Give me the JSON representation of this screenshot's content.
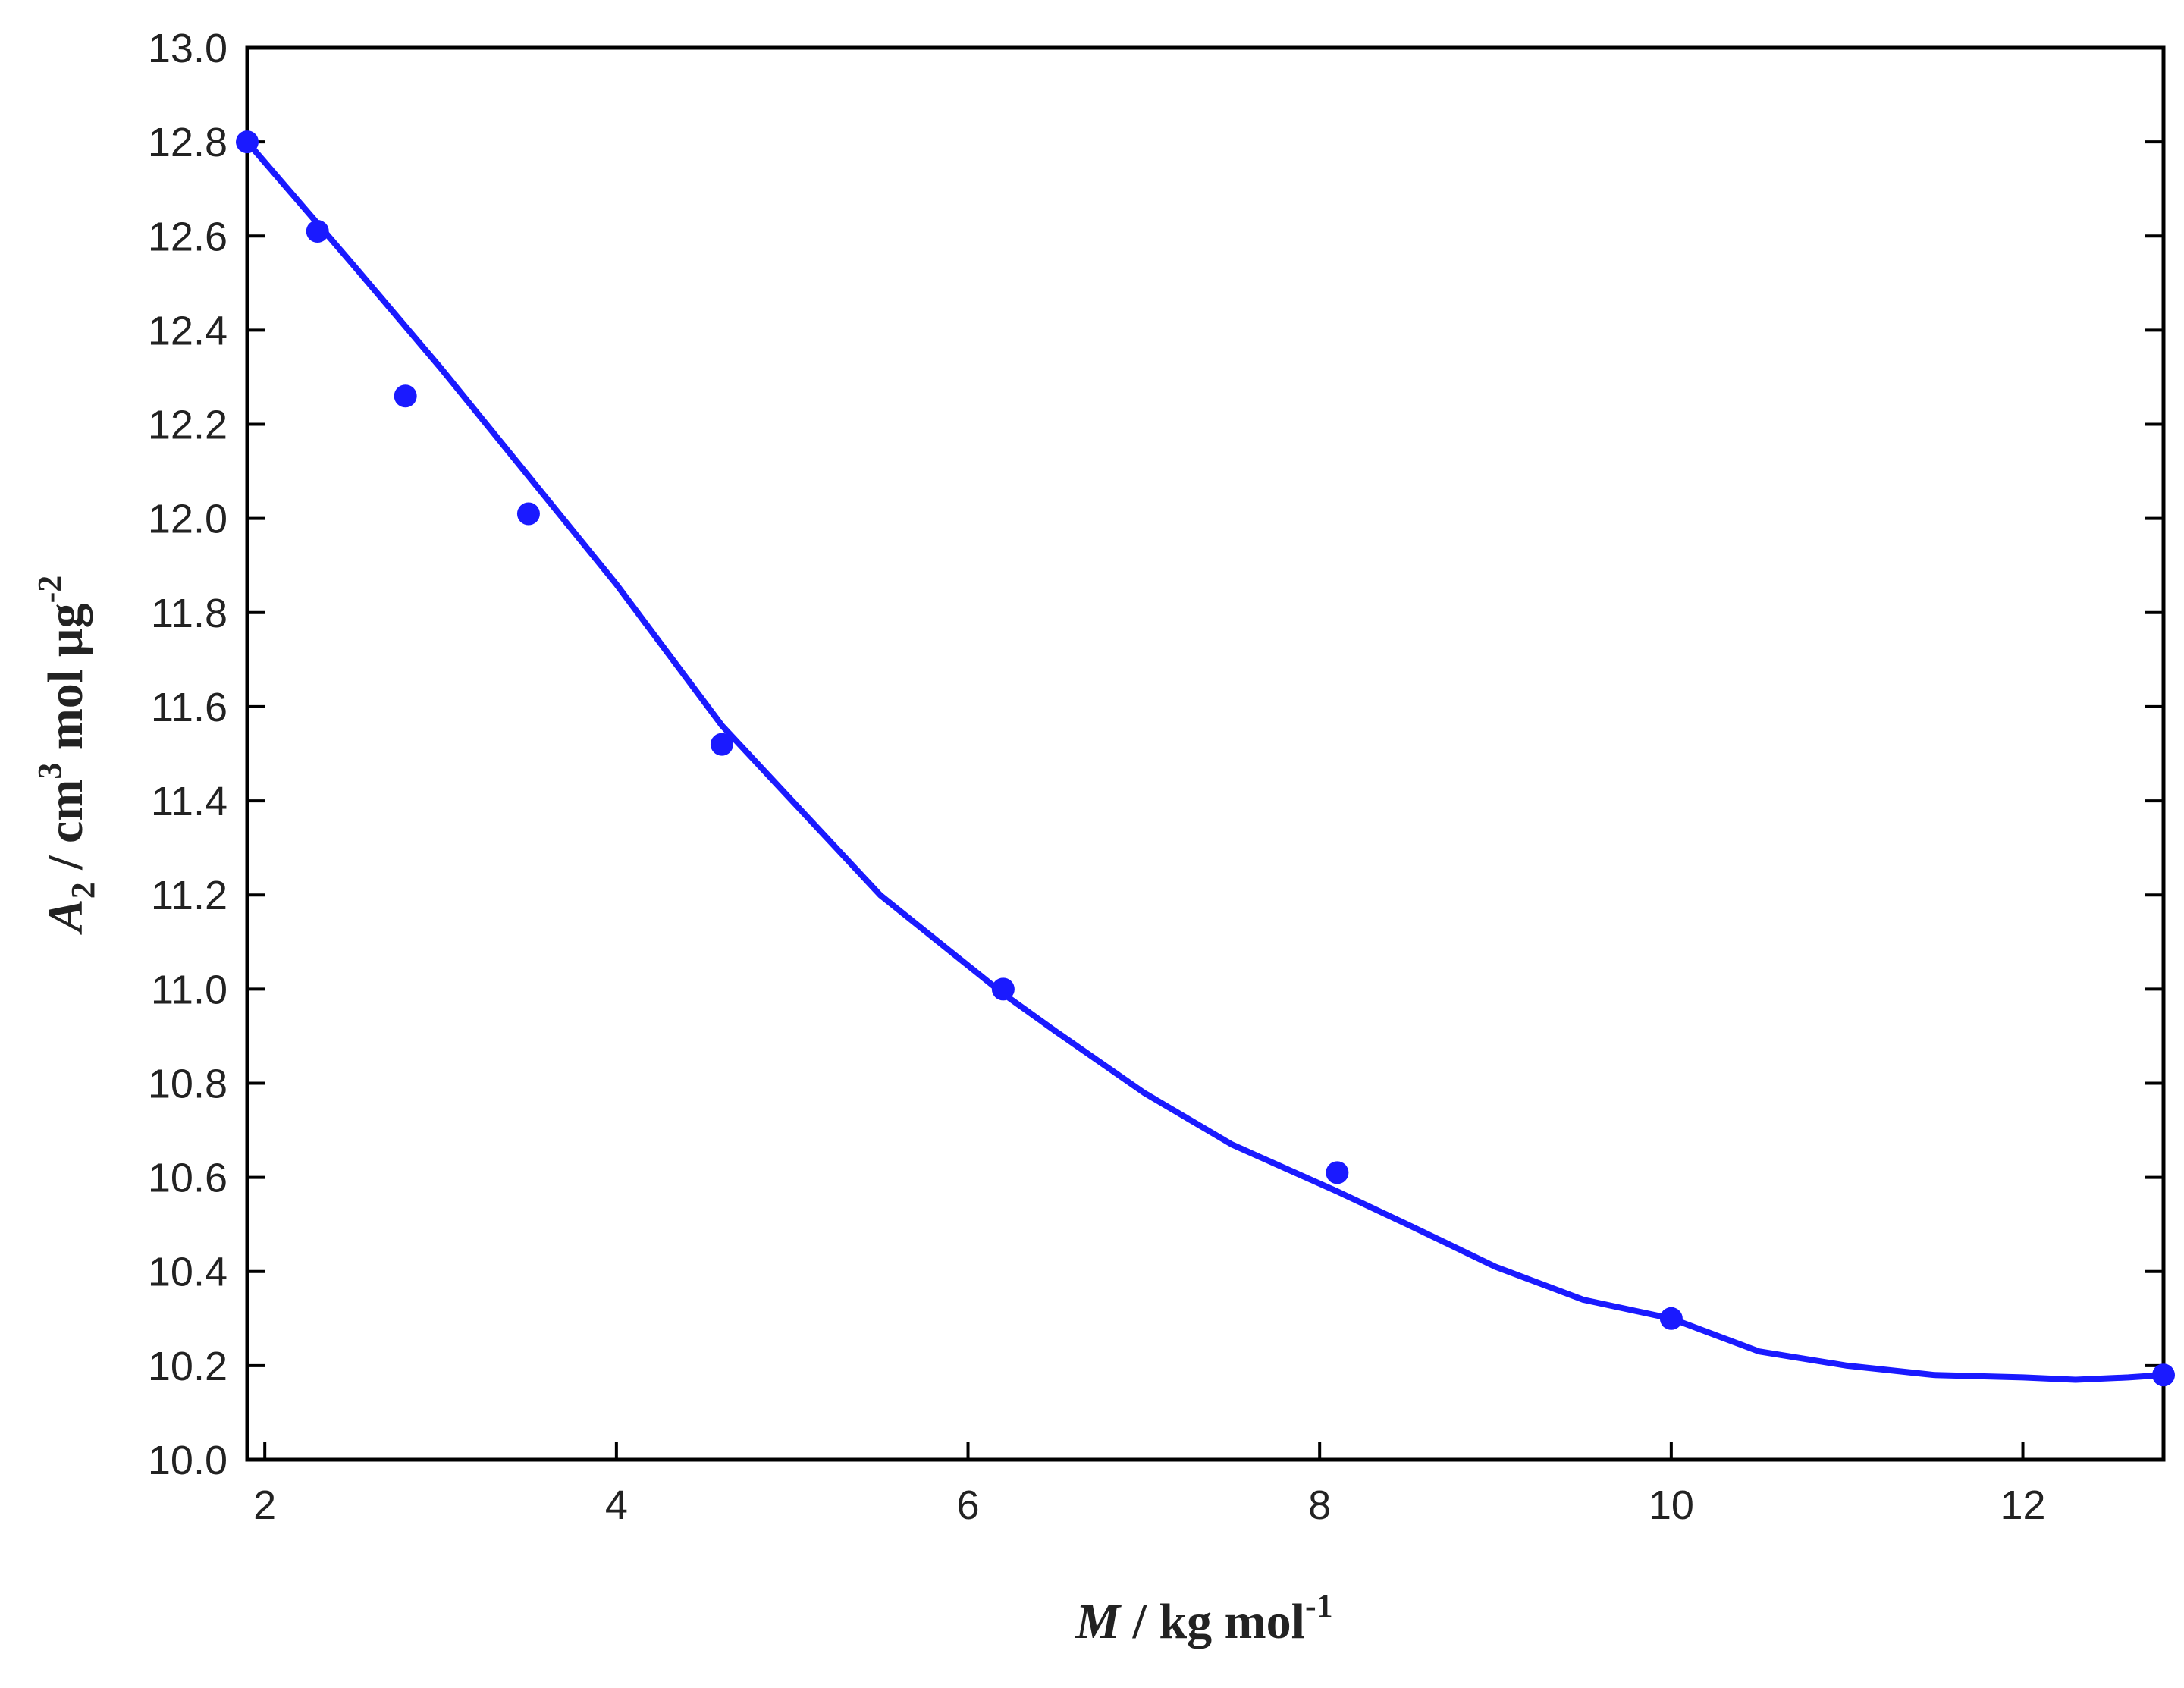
{
  "chart_data": {
    "type": "scatter",
    "xlabel": {
      "var": "M",
      "unit": " / kg mol",
      "exp": "-1"
    },
    "ylabel": {
      "var": "A",
      "sub": "2",
      "mid": "  / cm",
      "exp1": "3",
      "rest": " mol µg",
      "exp2": "-2"
    },
    "xlim": [
      1.9,
      12.8
    ],
    "ylim": [
      10.0,
      13.0
    ],
    "x_ticks": [
      "2",
      "4",
      "6",
      "8",
      "10",
      "12"
    ],
    "y_ticks": [
      "10.0",
      "10.2",
      "10.4",
      "10.6",
      "10.8",
      "11.0",
      "11.2",
      "11.4",
      "11.6",
      "11.8",
      "12.0",
      "12.2",
      "12.4",
      "12.6",
      "12.8",
      "13.0"
    ],
    "grid": false,
    "color": "#1a1aff",
    "series": [
      {
        "style": "markers",
        "x": [
          1.9,
          2.3,
          2.8,
          3.5,
          4.6,
          6.2,
          8.1,
          10.0,
          12.8
        ],
        "y": [
          12.8,
          12.61,
          12.26,
          12.01,
          11.52,
          11.0,
          10.61,
          10.3,
          10.18
        ]
      },
      {
        "style": "line",
        "x": [
          1.9,
          2.5,
          3.0,
          3.5,
          4.0,
          4.6,
          5.0,
          5.5,
          6.2,
          6.5,
          7.0,
          7.5,
          8.1,
          8.5,
          9.0,
          9.5,
          10.0,
          10.5,
          11.0,
          11.5,
          12.0,
          12.3,
          12.6,
          12.8
        ],
        "y": [
          12.8,
          12.54,
          12.32,
          12.09,
          11.86,
          11.56,
          11.4,
          11.2,
          10.99,
          10.91,
          10.78,
          10.67,
          10.57,
          10.5,
          10.41,
          10.34,
          10.3,
          10.23,
          10.2,
          10.18,
          10.175,
          10.17,
          10.175,
          10.18
        ]
      }
    ]
  }
}
